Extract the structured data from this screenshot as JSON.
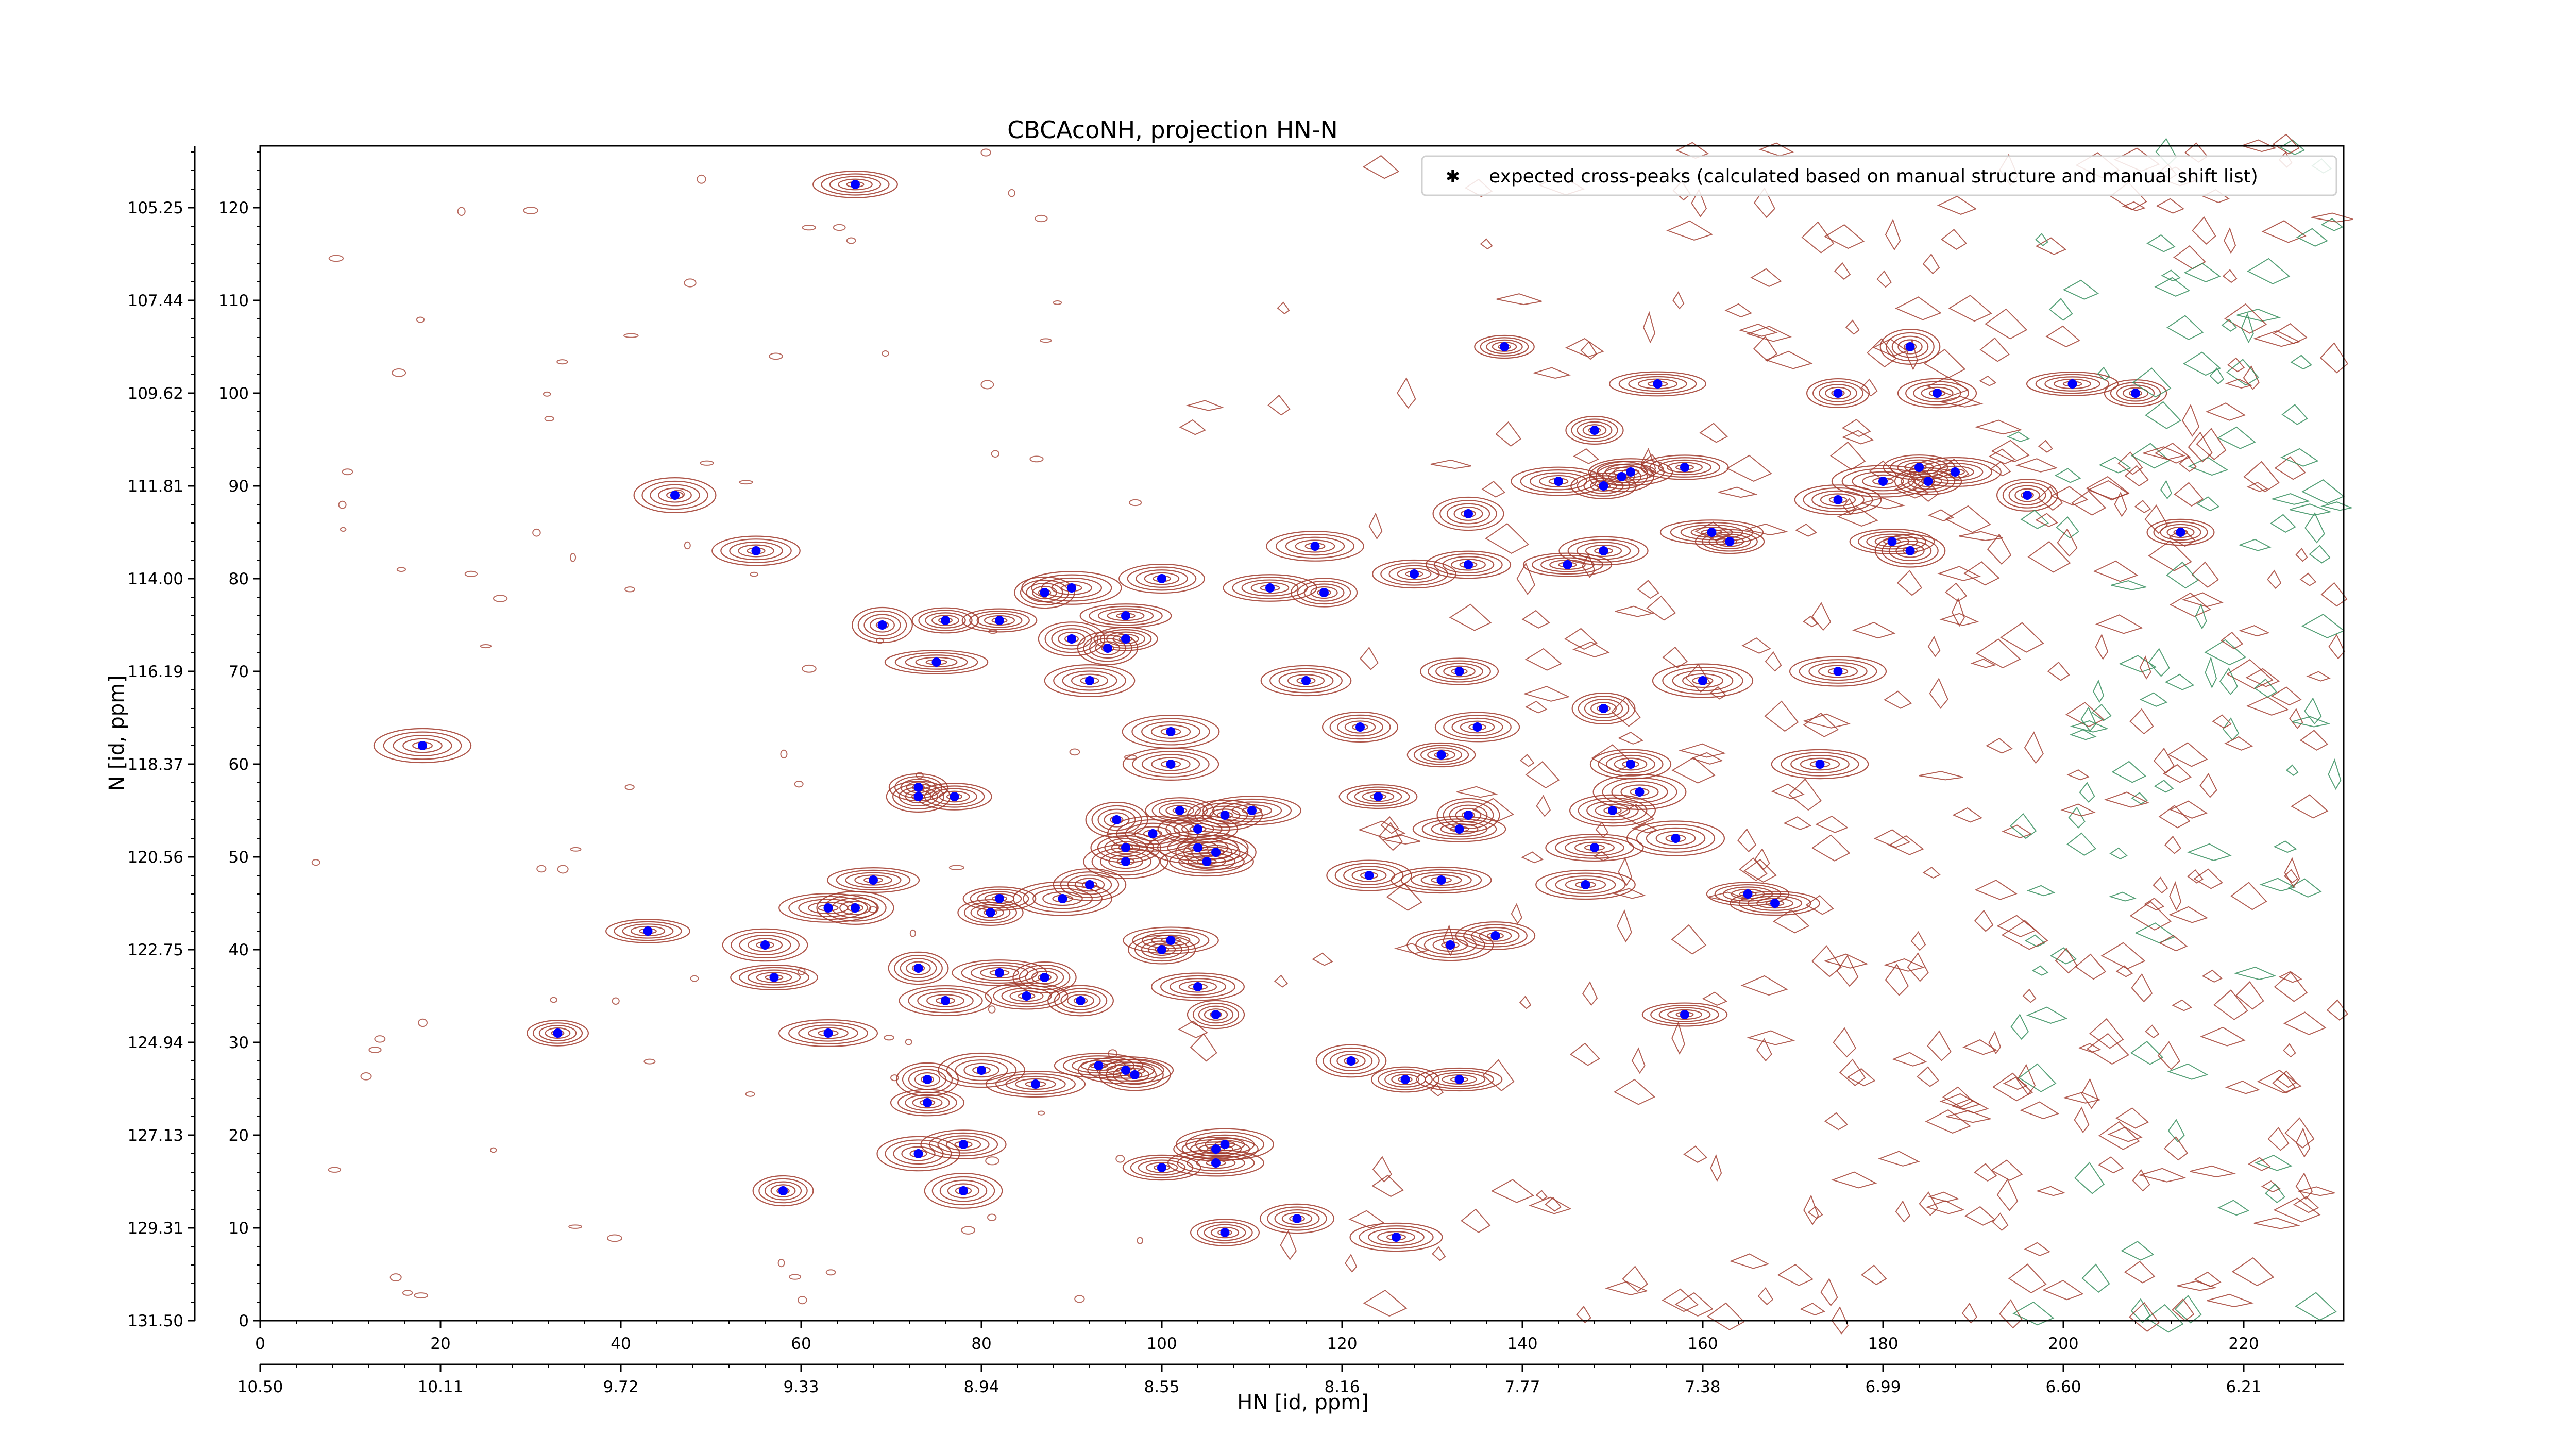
{
  "chart_data": {
    "type": "scatter",
    "title": "CBCAcoNH, projection HN-N",
    "xlabel": "HN [id, ppm]",
    "ylabel": "N [id, ppm]",
    "xlim": [
      0,
      231
    ],
    "ylim": [
      0,
      127
    ],
    "x_ticks": [
      0,
      20,
      40,
      60,
      80,
      100,
      120,
      140,
      160,
      180,
      200,
      220
    ],
    "y_ticks": [
      0,
      10,
      20,
      30,
      40,
      50,
      60,
      70,
      80,
      90,
      100,
      110,
      120
    ],
    "x_ppm_ticks": [
      "10.50",
      "10.11",
      "9.72",
      "9.33",
      "8.94",
      "8.55",
      "8.16",
      "7.77",
      "7.38",
      "6.99",
      "6.60",
      "6.21"
    ],
    "y_ppm_ticks": [
      "131.50",
      "129.31",
      "127.13",
      "124.94",
      "122.75",
      "120.56",
      "118.37",
      "116.19",
      "114.00",
      "111.81",
      "109.62",
      "107.44",
      "105.25"
    ],
    "grid": false,
    "legend": "top-right",
    "colors": {
      "positive_contour": "#a0382a",
      "negative_contour": "#2e8b57",
      "peak_marker": "#0000ff"
    },
    "series": [
      {
        "name": "expected cross-peaks (calculated based on manual structure and manual shift list)",
        "points": [
          [
            66,
            122.5
          ],
          [
            46,
            89
          ],
          [
            55,
            83
          ],
          [
            18,
            62
          ],
          [
            69,
            75
          ],
          [
            76,
            75.5
          ],
          [
            75,
            71
          ],
          [
            82,
            75.5
          ],
          [
            87,
            78.5
          ],
          [
            90,
            79
          ],
          [
            96,
            76
          ],
          [
            100,
            80
          ],
          [
            90,
            73.5
          ],
          [
            94,
            72.5
          ],
          [
            96,
            73.5
          ],
          [
            92,
            69
          ],
          [
            101,
            63.5
          ],
          [
            101,
            60
          ],
          [
            73,
            57.5
          ],
          [
            73,
            56.5
          ],
          [
            77,
            56.5
          ],
          [
            112,
            79
          ],
          [
            117,
            83.5
          ],
          [
            118,
            78.5
          ],
          [
            128,
            80.5
          ],
          [
            134,
            87
          ],
          [
            134,
            81.5
          ],
          [
            116,
            69
          ],
          [
            122,
            64
          ],
          [
            131,
            61
          ],
          [
            135,
            64
          ],
          [
            133,
            70
          ],
          [
            124,
            56.5
          ],
          [
            133,
            53
          ],
          [
            134,
            54.5
          ],
          [
            123,
            48
          ],
          [
            131,
            47.5
          ],
          [
            137,
            41.5
          ],
          [
            132,
            40.5
          ],
          [
            127,
            26
          ],
          [
            133,
            26
          ],
          [
            121,
            28
          ],
          [
            126,
            9
          ],
          [
            115,
            11
          ],
          [
            107,
            9.5
          ],
          [
            106,
            17
          ],
          [
            106,
            18.5
          ],
          [
            107,
            19
          ],
          [
            100,
            16.5
          ],
          [
            101,
            41
          ],
          [
            100,
            40
          ],
          [
            104,
            36
          ],
          [
            106,
            33
          ],
          [
            95,
            54
          ],
          [
            96,
            51
          ],
          [
            96,
            49.5
          ],
          [
            99,
            52.5
          ],
          [
            102,
            55
          ],
          [
            104,
            53
          ],
          [
            105,
            49.5
          ],
          [
            104,
            51
          ],
          [
            106,
            50.5
          ],
          [
            107,
            54.5
          ],
          [
            110,
            55
          ],
          [
            92,
            47
          ],
          [
            89,
            45.5
          ],
          [
            81,
            44
          ],
          [
            82,
            45.5
          ],
          [
            87,
            37
          ],
          [
            82,
            37.5
          ],
          [
            85,
            35
          ],
          [
            91,
            34.5
          ],
          [
            80,
            27
          ],
          [
            86,
            25.5
          ],
          [
            93,
            27.5
          ],
          [
            96,
            27
          ],
          [
            97,
            26.5
          ],
          [
            74,
            26
          ],
          [
            74,
            23.5
          ],
          [
            78,
            19
          ],
          [
            73,
            18
          ],
          [
            78,
            14
          ],
          [
            58,
            14
          ],
          [
            57,
            37
          ],
          [
            56,
            40.5
          ],
          [
            43,
            42
          ],
          [
            63,
            44.5
          ],
          [
            66,
            44.5
          ],
          [
            68,
            47.5
          ],
          [
            63,
            31
          ],
          [
            33,
            31
          ],
          [
            73,
            38
          ],
          [
            76,
            34.5
          ],
          [
            148,
            96
          ],
          [
            144,
            90.5
          ],
          [
            149,
            90
          ],
          [
            151,
            91
          ],
          [
            152,
            91.5
          ],
          [
            158,
            92
          ],
          [
            155,
            101
          ],
          [
            161,
            85
          ],
          [
            163,
            84
          ],
          [
            149,
            83
          ],
          [
            145,
            81.5
          ],
          [
            138,
            105
          ],
          [
            175,
            100
          ],
          [
            183,
            105
          ],
          [
            184,
            92
          ],
          [
            185,
            90.5
          ],
          [
            186,
            100
          ],
          [
            180,
            90.5
          ],
          [
            181,
            84
          ],
          [
            183,
            83
          ],
          [
            188,
            91.5
          ],
          [
            196,
            89
          ],
          [
            201,
            101
          ],
          [
            208,
            100
          ],
          [
            213,
            85
          ],
          [
            175,
            88.5
          ],
          [
            175,
            70
          ],
          [
            173,
            60
          ],
          [
            149,
            66
          ],
          [
            152,
            60
          ],
          [
            153,
            57
          ],
          [
            150,
            55
          ],
          [
            148,
            51
          ],
          [
            147,
            47
          ],
          [
            157,
            52
          ],
          [
            160,
            69
          ],
          [
            165,
            46
          ],
          [
            168,
            45
          ],
          [
            158,
            33
          ]
        ]
      }
    ]
  }
}
